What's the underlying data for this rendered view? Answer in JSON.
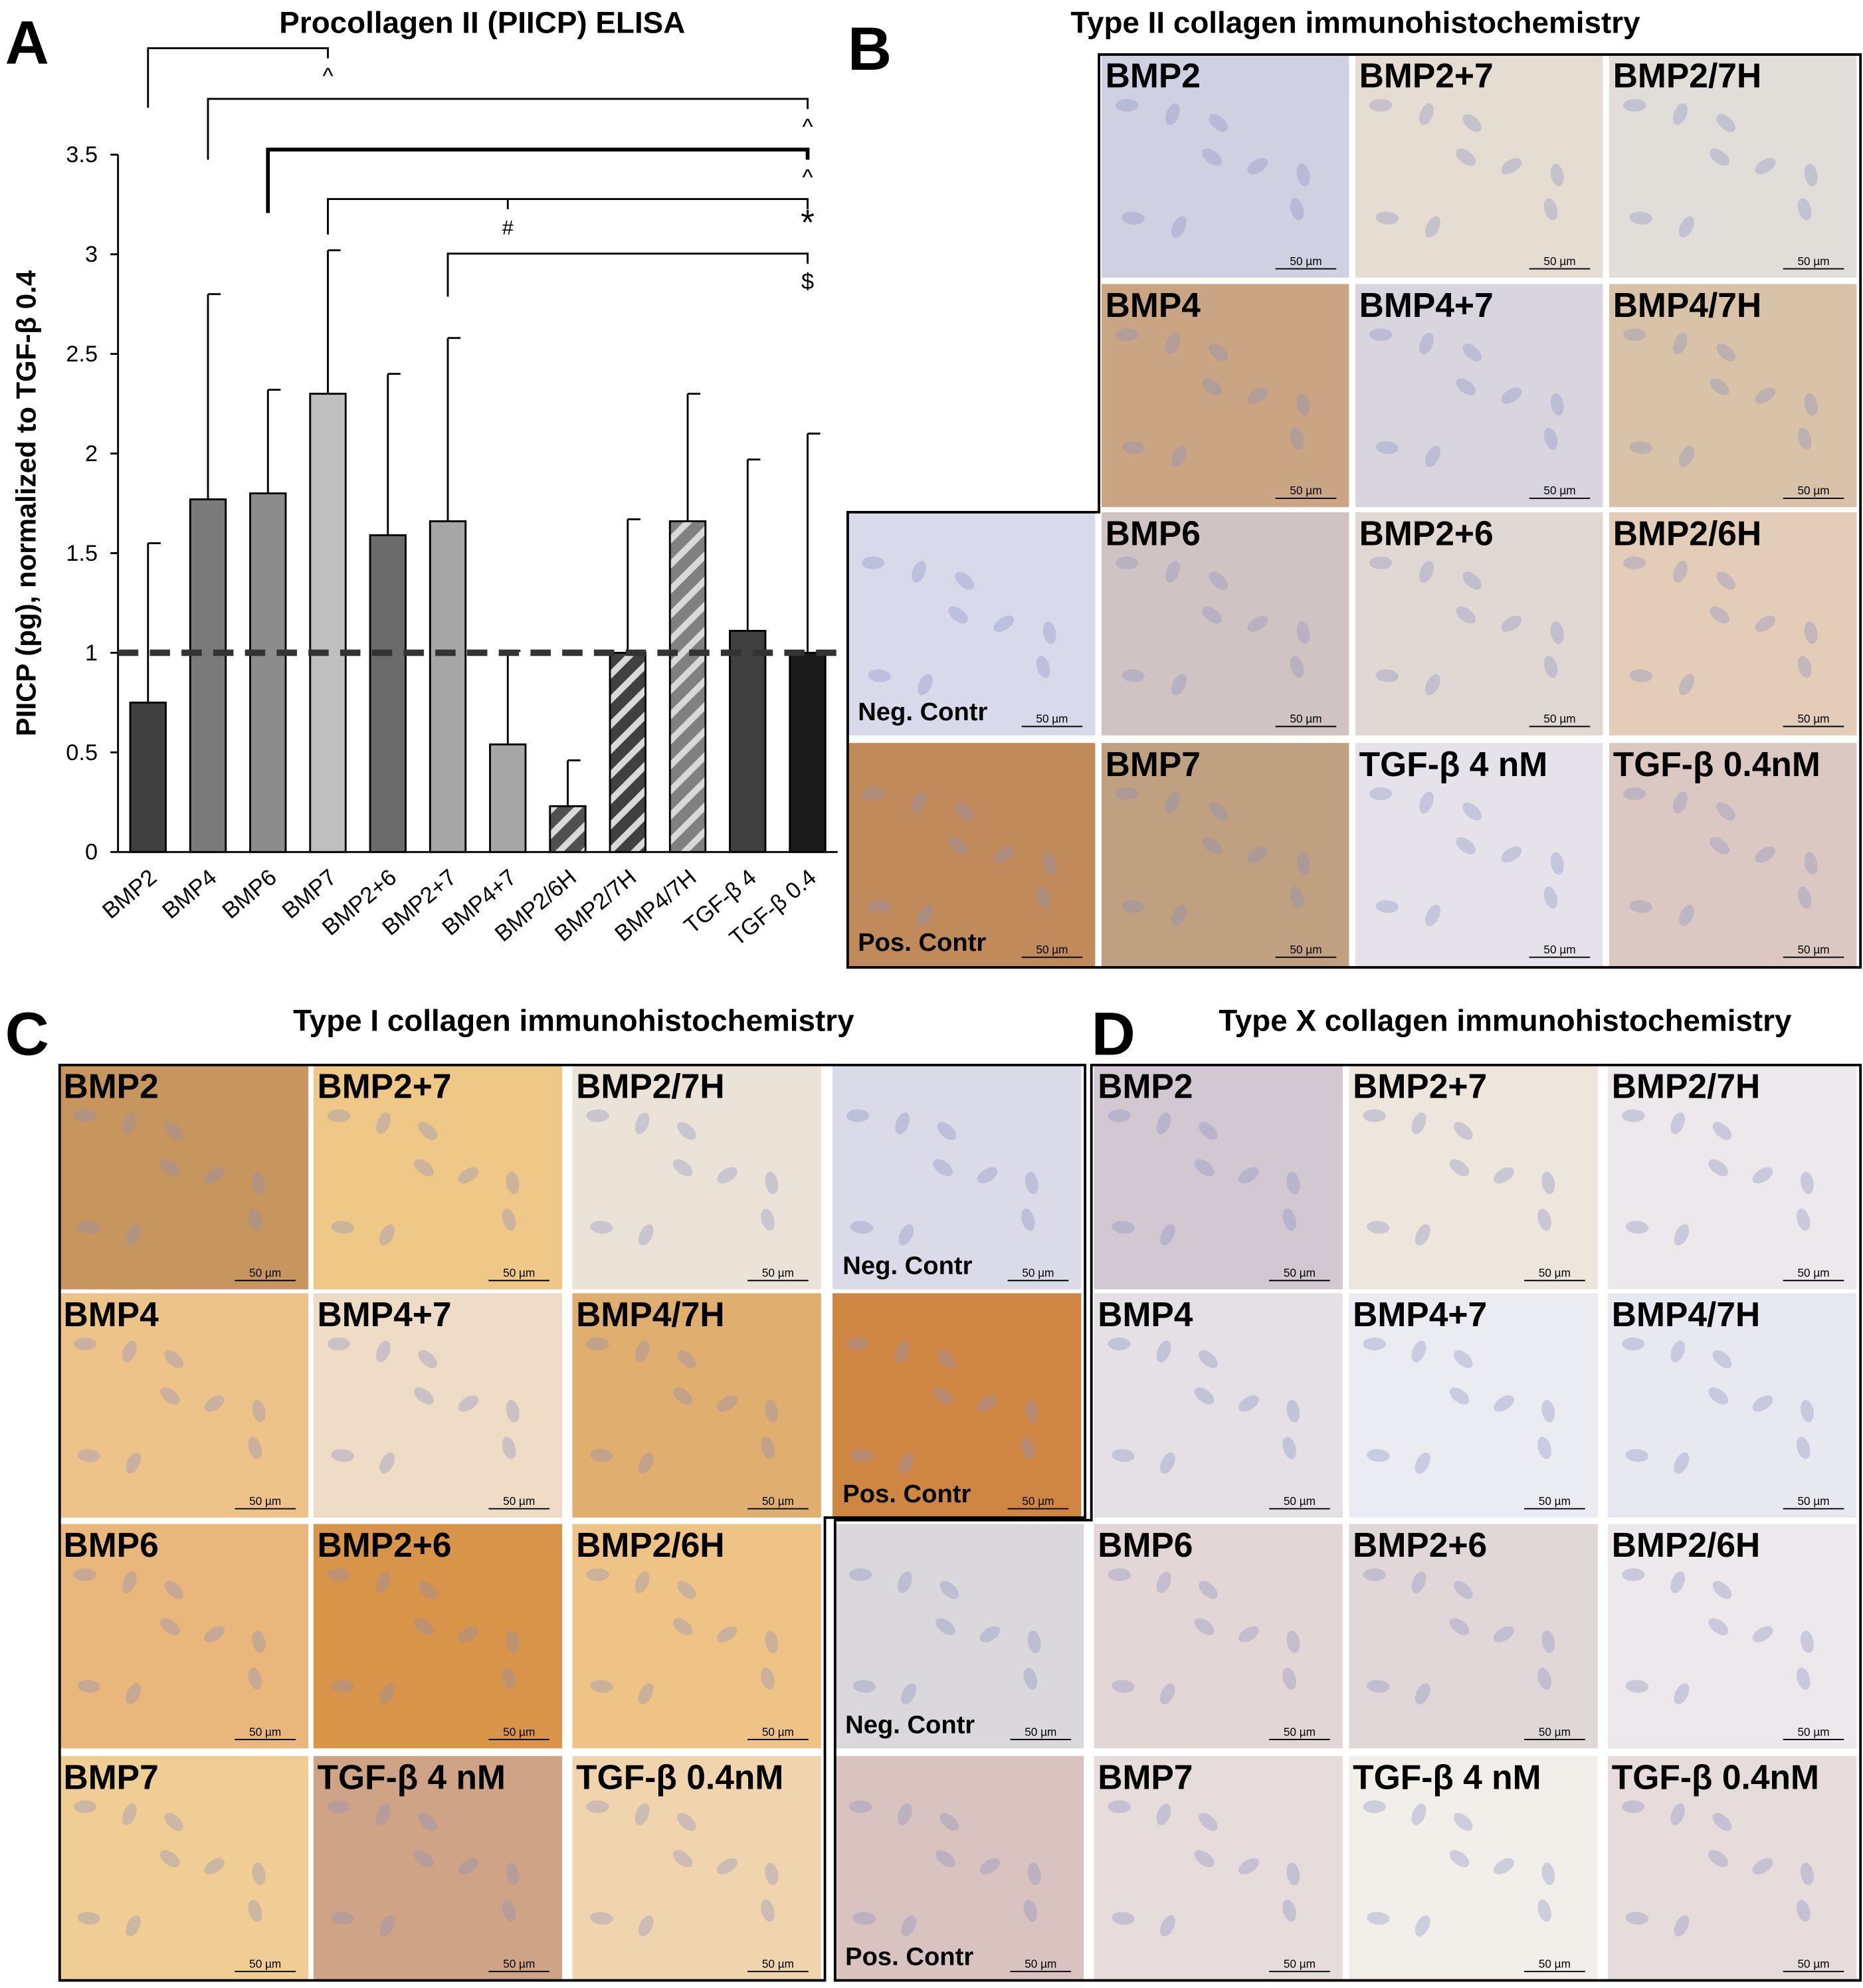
{
  "chart_data": {
    "type": "bar",
    "letter": "A",
    "title": "Procollagen II (PIICP) ELISA",
    "y_label": "PIICP (pg), normalized to TGF-β 0.4",
    "categories": [
      "BMP2",
      "BMP4",
      "BMP6",
      "BMP7",
      "BMP2+6",
      "BMP2+7",
      "BMP4+7",
      "BMP2/6H",
      "BMP2/7H",
      "BMP4/7H",
      "TGF-β 4",
      "TGF-β 0.4"
    ],
    "values": [
      0.75,
      1.77,
      1.8,
      2.3,
      1.59,
      1.66,
      0.54,
      0.23,
      1.0,
      1.66,
      1.11,
      1.0
    ],
    "errors": [
      0.8,
      1.03,
      0.52,
      0.72,
      0.81,
      0.92,
      0.47,
      0.23,
      0.67,
      0.64,
      0.86,
      1.1
    ],
    "colors": [
      "#404040",
      "#7a7a7a",
      "#8c8c8c",
      "#bfbfbf",
      "#6b6b6b",
      "#a6a6a6",
      "#a6a6a6",
      "#505050",
      "#404040",
      "#808080",
      "#404040",
      "#1a1a1a"
    ],
    "hatched": [
      false,
      false,
      false,
      false,
      false,
      false,
      false,
      true,
      true,
      true,
      false,
      false
    ],
    "ylim": [
      0,
      3.5
    ],
    "yticks": [
      0,
      0.5,
      1,
      1.5,
      2,
      2.5,
      3,
      3.5
    ],
    "grid": false,
    "reference_line": 1,
    "annotations": [
      {
        "from": "BMP2",
        "to": "BMP7",
        "text": "^"
      },
      {
        "from": "BMP4",
        "to": "TGF-β 0.4",
        "text": "^"
      },
      {
        "from": "BMP6",
        "to": "TGF-β 0.4",
        "text": "^"
      },
      {
        "from": "BMP7",
        "to": "TGF-β 0.4",
        "text": "*",
        "mid": "BMP4+7",
        "mid_text": "#"
      },
      {
        "from": "BMP2+7",
        "to": "TGF-β 0.4",
        "text": "$"
      }
    ]
  },
  "panel_b": {
    "letter": "B",
    "title": "Type II collagen immunohistochemistry",
    "scale_bar": "50 µm",
    "tiles": [
      {
        "label": "BMP2",
        "color": "#cfd0e2"
      },
      {
        "label": "BMP2+7",
        "color": "#e6ddd2"
      },
      {
        "label": "BMP2/7H",
        "color": "#e1ddd9"
      },
      {
        "label": "BMP4",
        "color": "#c9a584"
      },
      {
        "label": "BMP4+7",
        "color": "#d8d5df"
      },
      {
        "label": "BMP4/7H",
        "color": "#d9c3a8"
      },
      {
        "label": "Neg. Contr",
        "color": "#d8daec",
        "label_position": "bottom"
      },
      {
        "label": "BMP6",
        "color": "#cfc3c3"
      },
      {
        "label": "BMP2+6",
        "color": "#e0d8d3"
      },
      {
        "label": "BMP2/6H",
        "color": "#e3cdb8"
      },
      {
        "label": "Pos. Contr",
        "color": "#c08a5a",
        "label_position": "bottom"
      },
      {
        "label": "BMP7",
        "color": "#bfa080"
      },
      {
        "label": "TGF-β 4 nM",
        "color": "#e5e2ea"
      },
      {
        "label": "TGF-β 0.4nM",
        "color": "#dcc8c3"
      }
    ]
  },
  "panel_c": {
    "letter": "C",
    "title": "Type I collagen immunohistochemistry",
    "scale_bar": "50 µm",
    "tiles": [
      {
        "label": "BMP2",
        "color": "#c7965f"
      },
      {
        "label": "BMP2+7",
        "color": "#efc887"
      },
      {
        "label": "BMP2/7H",
        "color": "#ece3d8"
      },
      {
        "label": "Neg. Contr",
        "color": "#dadae8",
        "label_position": "bottom"
      },
      {
        "label": "BMP4",
        "color": "#eec38a"
      },
      {
        "label": "BMP4+7",
        "color": "#eedcc6"
      },
      {
        "label": "BMP4/7H",
        "color": "#e0ae6e"
      },
      {
        "label": "Pos. Contr",
        "color": "#cf8642",
        "label_position": "bottom"
      },
      {
        "label": "BMP6",
        "color": "#e9b77c"
      },
      {
        "label": "BMP2+6",
        "color": "#d89448"
      },
      {
        "label": "BMP2/6H",
        "color": "#efc386"
      },
      {
        "label": "BMP7",
        "color": "#f0cd94"
      },
      {
        "label": "TGF-β 4 nM",
        "color": "#cfa486"
      },
      {
        "label": "TGF-β 0.4nM",
        "color": "#f0d4ae"
      }
    ]
  },
  "panel_d": {
    "letter": "D",
    "title": "Type X collagen immunohistochemistry",
    "scale_bar": "50 µm",
    "tiles": [
      {
        "label": "BMP2",
        "color": "#d2c8d2"
      },
      {
        "label": "BMP2+7",
        "color": "#ece6dc"
      },
      {
        "label": "BMP2/7H",
        "color": "#ede8ec"
      },
      {
        "label": "BMP4",
        "color": "#e4e0e6"
      },
      {
        "label": "BMP4+7",
        "color": "#ebebf2"
      },
      {
        "label": "BMP4/7H",
        "color": "#e8e8f0"
      },
      {
        "label": "Neg. Contr",
        "color": "#dad8dc",
        "label_position": "bottom"
      },
      {
        "label": "BMP6",
        "color": "#e2d6d6"
      },
      {
        "label": "BMP2+6",
        "color": "#e0d8d8"
      },
      {
        "label": "BMP2/6H",
        "color": "#ede8ec"
      },
      {
        "label": "Pos. Contr",
        "color": "#d9c3c0",
        "label_position": "bottom"
      },
      {
        "label": "BMP7",
        "color": "#e6dcdc"
      },
      {
        "label": "TGF-β 4 nM",
        "color": "#f2eeea"
      },
      {
        "label": "TGF-β 0.4nM",
        "color": "#e6dcdc"
      }
    ]
  }
}
